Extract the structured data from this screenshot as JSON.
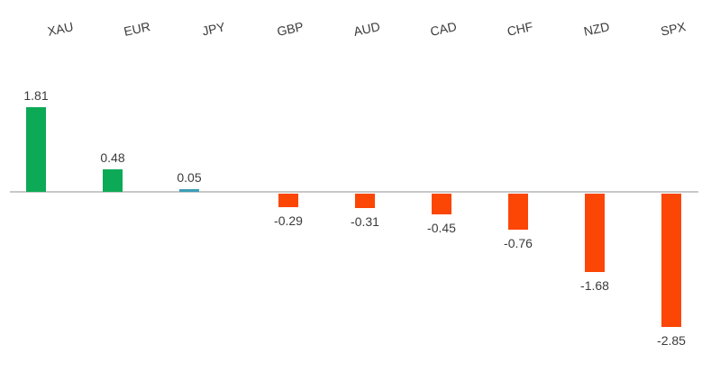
{
  "chart_data": {
    "type": "bar",
    "title": "",
    "xlabel": "",
    "ylabel": "",
    "categories": [
      "XAU",
      "EUR",
      "JPY",
      "GBP",
      "AUD",
      "CAD",
      "CHF",
      "NZD",
      "SPX"
    ],
    "values": [
      1.81,
      0.48,
      0.05,
      -0.29,
      -0.31,
      -0.45,
      -0.76,
      -1.68,
      -2.85
    ],
    "value_labels": [
      "1.81",
      "0.48",
      "0.05",
      "-0.29",
      "-0.31",
      "-0.45",
      "-0.76",
      "-1.68",
      "-2.85"
    ],
    "bar_colors": [
      "#0CA957",
      "#0CA957",
      "#3C9FB8",
      "#FC4605",
      "#FC4605",
      "#FC4605",
      "#FC4605",
      "#FC4605",
      "#FC4605"
    ],
    "colors": {
      "positive_green": "#0CA957",
      "jpy_teal": "#3C9FB8",
      "negative_orange": "#FC4605",
      "axis_line": "#C8C8C8",
      "text": "#3B3B3B"
    },
    "ylim": [
      -3.2,
      2.2
    ],
    "grid": false,
    "legend": null,
    "axis": "zero-baseline horizontal line, category labels rotated above chart"
  }
}
